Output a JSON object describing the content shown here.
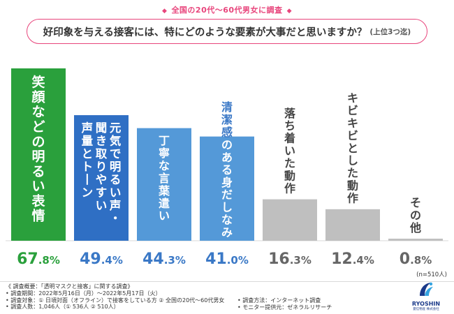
{
  "header": {
    "survey_label": "全国の20代〜60代男女に調査",
    "question": "好印象を与える接客には、特にどのような要素が大事だと思いますか？",
    "question_note": "(上位3つ迄)"
  },
  "chart_data": {
    "type": "bar",
    "title": "好印象を与える接客には、特にどのような要素が大事だと思いますか？(上位3つ迄)",
    "categories": [
      "笑顔などの明るい表情",
      "元気で明るい声・聞き取りやすい声量とトーン",
      "丁寧な言葉遣い",
      "清潔感のある身だしなみ",
      "落ち着いた動作",
      "キビキビとした動作",
      "その他"
    ],
    "label_columns": [
      [
        "笑顔などの明るい表情"
      ],
      [
        "元気で明るい声・",
        "聞き取りやすい",
        "声量とトーン"
      ],
      [
        "丁寧な言葉遣い"
      ],
      [
        "清潔感のある身だしなみ"
      ],
      [
        "落ち着いた動作"
      ],
      [
        "キビキビとした動作"
      ],
      [
        "その他"
      ]
    ],
    "values": [
      67.8,
      49.4,
      44.3,
      41.0,
      16.3,
      12.4,
      0.8
    ],
    "value_labels": [
      "67.8",
      "49.4",
      "44.3",
      "41.0",
      "16.3",
      "12.4",
      "0.8"
    ],
    "unit": "%",
    "ylim": [
      0,
      70
    ],
    "xlabel": "",
    "ylabel": "",
    "sample_note": "(n=510人)",
    "colors": {
      "top1": "#2aa03c",
      "top2": "#2f6fc4",
      "top34": "#5499d8",
      "rest": "#bfbfbf",
      "value_green": "#2aa03c",
      "value_blue": "#3a78c6",
      "value_gray": "#666666",
      "label_light": "#ffffff",
      "label_blue": "#3a78c6",
      "label_dark": "#444444"
    }
  },
  "footer": {
    "overview": "《 調査概要：「透明マスクと接客」に関する調査》",
    "period": "• 調査期間：2022年5月16日（月）〜2022年5月17日（火）",
    "target": "• 調査対象：① 日頃対面（オフライン）で接客をしている方 ② 全国の20代〜60代男女",
    "count": "• 調査人数：1,046人（① 536人 ② 510人）",
    "method": "• 調査方法：インターネット調査",
    "provider": "• モニター提供元：ゼネラルリサーチ",
    "logo_name": "RYOSHIN",
    "logo_sub": "菱信物産 株式会社"
  }
}
